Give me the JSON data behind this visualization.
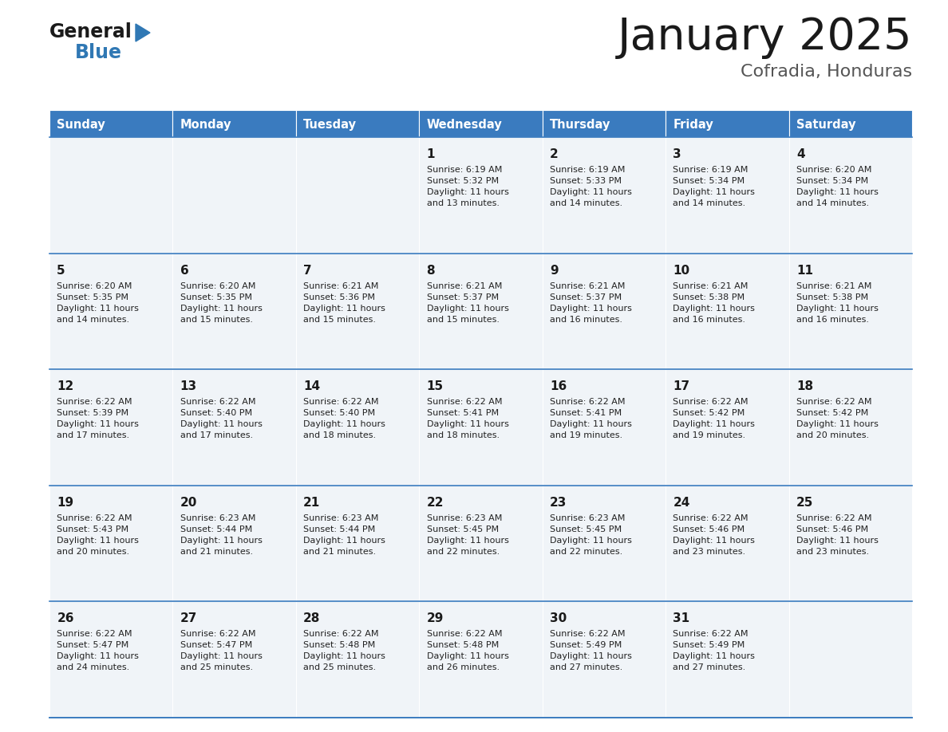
{
  "title": "January 2025",
  "subtitle": "Cofradia, Honduras",
  "header_color": "#3a7bbf",
  "header_text_color": "#ffffff",
  "cell_bg_even": "#f0f4f8",
  "cell_bg_odd": "#f0f4f8",
  "day_headers": [
    "Sunday",
    "Monday",
    "Tuesday",
    "Wednesday",
    "Thursday",
    "Friday",
    "Saturday"
  ],
  "border_color": "#3a7bbf",
  "text_color": "#222222",
  "logo_general_color": "#1a1a1a",
  "logo_blue_color": "#3078b4",
  "title_color": "#1a1a1a",
  "subtitle_color": "#555555",
  "calendar_data": [
    [
      {
        "day": "",
        "info": ""
      },
      {
        "day": "",
        "info": ""
      },
      {
        "day": "",
        "info": ""
      },
      {
        "day": "1",
        "info": "Sunrise: 6:19 AM\nSunset: 5:32 PM\nDaylight: 11 hours\nand 13 minutes."
      },
      {
        "day": "2",
        "info": "Sunrise: 6:19 AM\nSunset: 5:33 PM\nDaylight: 11 hours\nand 14 minutes."
      },
      {
        "day": "3",
        "info": "Sunrise: 6:19 AM\nSunset: 5:34 PM\nDaylight: 11 hours\nand 14 minutes."
      },
      {
        "day": "4",
        "info": "Sunrise: 6:20 AM\nSunset: 5:34 PM\nDaylight: 11 hours\nand 14 minutes."
      }
    ],
    [
      {
        "day": "5",
        "info": "Sunrise: 6:20 AM\nSunset: 5:35 PM\nDaylight: 11 hours\nand 14 minutes."
      },
      {
        "day": "6",
        "info": "Sunrise: 6:20 AM\nSunset: 5:35 PM\nDaylight: 11 hours\nand 15 minutes."
      },
      {
        "day": "7",
        "info": "Sunrise: 6:21 AM\nSunset: 5:36 PM\nDaylight: 11 hours\nand 15 minutes."
      },
      {
        "day": "8",
        "info": "Sunrise: 6:21 AM\nSunset: 5:37 PM\nDaylight: 11 hours\nand 15 minutes."
      },
      {
        "day": "9",
        "info": "Sunrise: 6:21 AM\nSunset: 5:37 PM\nDaylight: 11 hours\nand 16 minutes."
      },
      {
        "day": "10",
        "info": "Sunrise: 6:21 AM\nSunset: 5:38 PM\nDaylight: 11 hours\nand 16 minutes."
      },
      {
        "day": "11",
        "info": "Sunrise: 6:21 AM\nSunset: 5:38 PM\nDaylight: 11 hours\nand 16 minutes."
      }
    ],
    [
      {
        "day": "12",
        "info": "Sunrise: 6:22 AM\nSunset: 5:39 PM\nDaylight: 11 hours\nand 17 minutes."
      },
      {
        "day": "13",
        "info": "Sunrise: 6:22 AM\nSunset: 5:40 PM\nDaylight: 11 hours\nand 17 minutes."
      },
      {
        "day": "14",
        "info": "Sunrise: 6:22 AM\nSunset: 5:40 PM\nDaylight: 11 hours\nand 18 minutes."
      },
      {
        "day": "15",
        "info": "Sunrise: 6:22 AM\nSunset: 5:41 PM\nDaylight: 11 hours\nand 18 minutes."
      },
      {
        "day": "16",
        "info": "Sunrise: 6:22 AM\nSunset: 5:41 PM\nDaylight: 11 hours\nand 19 minutes."
      },
      {
        "day": "17",
        "info": "Sunrise: 6:22 AM\nSunset: 5:42 PM\nDaylight: 11 hours\nand 19 minutes."
      },
      {
        "day": "18",
        "info": "Sunrise: 6:22 AM\nSunset: 5:42 PM\nDaylight: 11 hours\nand 20 minutes."
      }
    ],
    [
      {
        "day": "19",
        "info": "Sunrise: 6:22 AM\nSunset: 5:43 PM\nDaylight: 11 hours\nand 20 minutes."
      },
      {
        "day": "20",
        "info": "Sunrise: 6:23 AM\nSunset: 5:44 PM\nDaylight: 11 hours\nand 21 minutes."
      },
      {
        "day": "21",
        "info": "Sunrise: 6:23 AM\nSunset: 5:44 PM\nDaylight: 11 hours\nand 21 minutes."
      },
      {
        "day": "22",
        "info": "Sunrise: 6:23 AM\nSunset: 5:45 PM\nDaylight: 11 hours\nand 22 minutes."
      },
      {
        "day": "23",
        "info": "Sunrise: 6:23 AM\nSunset: 5:45 PM\nDaylight: 11 hours\nand 22 minutes."
      },
      {
        "day": "24",
        "info": "Sunrise: 6:22 AM\nSunset: 5:46 PM\nDaylight: 11 hours\nand 23 minutes."
      },
      {
        "day": "25",
        "info": "Sunrise: 6:22 AM\nSunset: 5:46 PM\nDaylight: 11 hours\nand 23 minutes."
      }
    ],
    [
      {
        "day": "26",
        "info": "Sunrise: 6:22 AM\nSunset: 5:47 PM\nDaylight: 11 hours\nand 24 minutes."
      },
      {
        "day": "27",
        "info": "Sunrise: 6:22 AM\nSunset: 5:47 PM\nDaylight: 11 hours\nand 25 minutes."
      },
      {
        "day": "28",
        "info": "Sunrise: 6:22 AM\nSunset: 5:48 PM\nDaylight: 11 hours\nand 25 minutes."
      },
      {
        "day": "29",
        "info": "Sunrise: 6:22 AM\nSunset: 5:48 PM\nDaylight: 11 hours\nand 26 minutes."
      },
      {
        "day": "30",
        "info": "Sunrise: 6:22 AM\nSunset: 5:49 PM\nDaylight: 11 hours\nand 27 minutes."
      },
      {
        "day": "31",
        "info": "Sunrise: 6:22 AM\nSunset: 5:49 PM\nDaylight: 11 hours\nand 27 minutes."
      },
      {
        "day": "",
        "info": ""
      }
    ]
  ]
}
